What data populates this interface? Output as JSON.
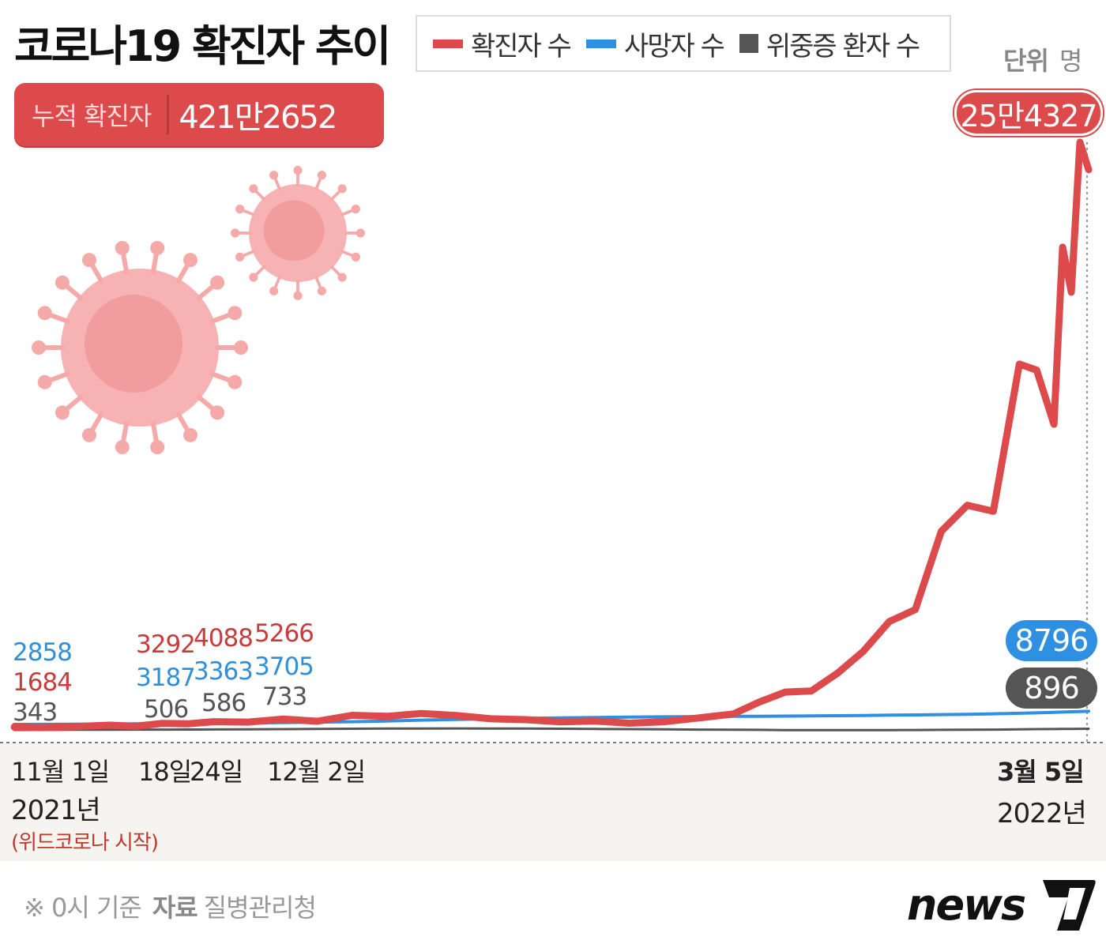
{
  "title": "코로나19 확진자 추이",
  "legend": [
    {
      "label": "확진자 수",
      "color": "#dc4a4b",
      "shape": "line"
    },
    {
      "label": "사망자 수",
      "color": "#2f8fe0",
      "shape": "line"
    },
    {
      "label": "위중증 환자 수",
      "color": "#555555",
      "shape": "square"
    }
  ],
  "unit": {
    "prefix": "단위",
    "value": "명"
  },
  "cumulative": {
    "label": "누적 확진자",
    "value": "421만2652"
  },
  "footer": {
    "note": "※ 0시 기준",
    "source_label": "자료",
    "source": "질병관리청"
  },
  "logo": {
    "text": "news1"
  },
  "xaxis": {
    "ticks": [
      "11월 1일",
      "18일",
      "24일",
      "12월 2일",
      "3월 5일"
    ],
    "start_year": "2021년",
    "start_note": "(위드코로나 시작)",
    "end_year": "2022년"
  },
  "callouts": {
    "peak_confirmed": "25만4327",
    "end_deaths": "8796",
    "end_critical": "896"
  },
  "colors": {
    "confirmed": "#dc4a4b",
    "deaths": "#2f8fe0",
    "critical": "#555555",
    "band": "#f5f4f1"
  },
  "icons": [
    "coronavirus-icon-large",
    "coronavirus-icon-small"
  ],
  "chart_data": {
    "type": "line",
    "title": "코로나19 확진자 추이",
    "xlabel": "",
    "ylabel": "",
    "x": [
      "2021-11-01",
      "2021-11-04",
      "2021-11-08",
      "2021-11-12",
      "2021-11-15",
      "2021-11-18",
      "2021-11-21",
      "2021-11-24",
      "2021-11-28",
      "2021-12-02",
      "2021-12-06",
      "2021-12-10",
      "2021-12-14",
      "2021-12-18",
      "2021-12-22",
      "2021-12-26",
      "2021-12-30",
      "2022-01-03",
      "2022-01-07",
      "2022-01-11",
      "2022-01-15",
      "2022-01-19",
      "2022-01-23",
      "2022-01-26",
      "2022-01-29",
      "2022-02-01",
      "2022-02-04",
      "2022-02-07",
      "2022-02-10",
      "2022-02-13",
      "2022-02-16",
      "2022-02-19",
      "2022-02-22",
      "2022-02-25",
      "2022-02-27",
      "2022-03-01",
      "2022-03-02",
      "2022-03-03",
      "2022-03-04",
      "2022-03-05"
    ],
    "series": [
      {
        "name": "확진자 수",
        "values": [
          1684,
          1400,
          1900,
          2500,
          2000,
          3292,
          3100,
          4088,
          3900,
          5266,
          4300,
          7000,
          6500,
          7800,
          6900,
          5400,
          5000,
          4000,
          4400,
          3400,
          4100,
          5800,
          7600,
          13000,
          17500,
          18000,
          26000,
          36000,
          49500,
          54900,
          90400,
          102200,
          99500,
          166200,
          163500,
          138900,
          219200,
          198800,
          266800,
          254327
        ]
      },
      {
        "name": "사망자 수",
        "values": [
          2858,
          2900,
          2950,
          3050,
          3120,
          3187,
          3270,
          3363,
          3500,
          3705,
          3900,
          4100,
          4400,
          4800,
          5100,
          5400,
          5600,
          5800,
          6000,
          6200,
          6300,
          6400,
          6500,
          6550,
          6620,
          6700,
          6800,
          6900,
          7050,
          7150,
          7300,
          7450,
          7650,
          7900,
          8100,
          8300,
          8450,
          8600,
          8700,
          8796
        ]
      },
      {
        "name": "위중증 환자 수",
        "values": [
          343,
          360,
          420,
          480,
          490,
          506,
          540,
          586,
          650,
          733,
          800,
          900,
          980,
          1000,
          1050,
          1000,
          950,
          900,
          800,
          700,
          600,
          500,
          430,
          380,
          300,
          280,
          270,
          280,
          300,
          330,
          400,
          450,
          500,
          600,
          700,
          750,
          780,
          820,
          860,
          896
        ]
      }
    ],
    "labels": {
      "confirmed": [
        "1684",
        "3292",
        "4088",
        "5266"
      ],
      "deaths": [
        "2858",
        "3187",
        "3363",
        "3705"
      ],
      "critical": [
        "343",
        "506",
        "586",
        "733"
      ]
    },
    "peak": "25만4327",
    "end": {
      "deaths": "8796",
      "critical": "896"
    },
    "grid": false,
    "legend_position": "top"
  }
}
